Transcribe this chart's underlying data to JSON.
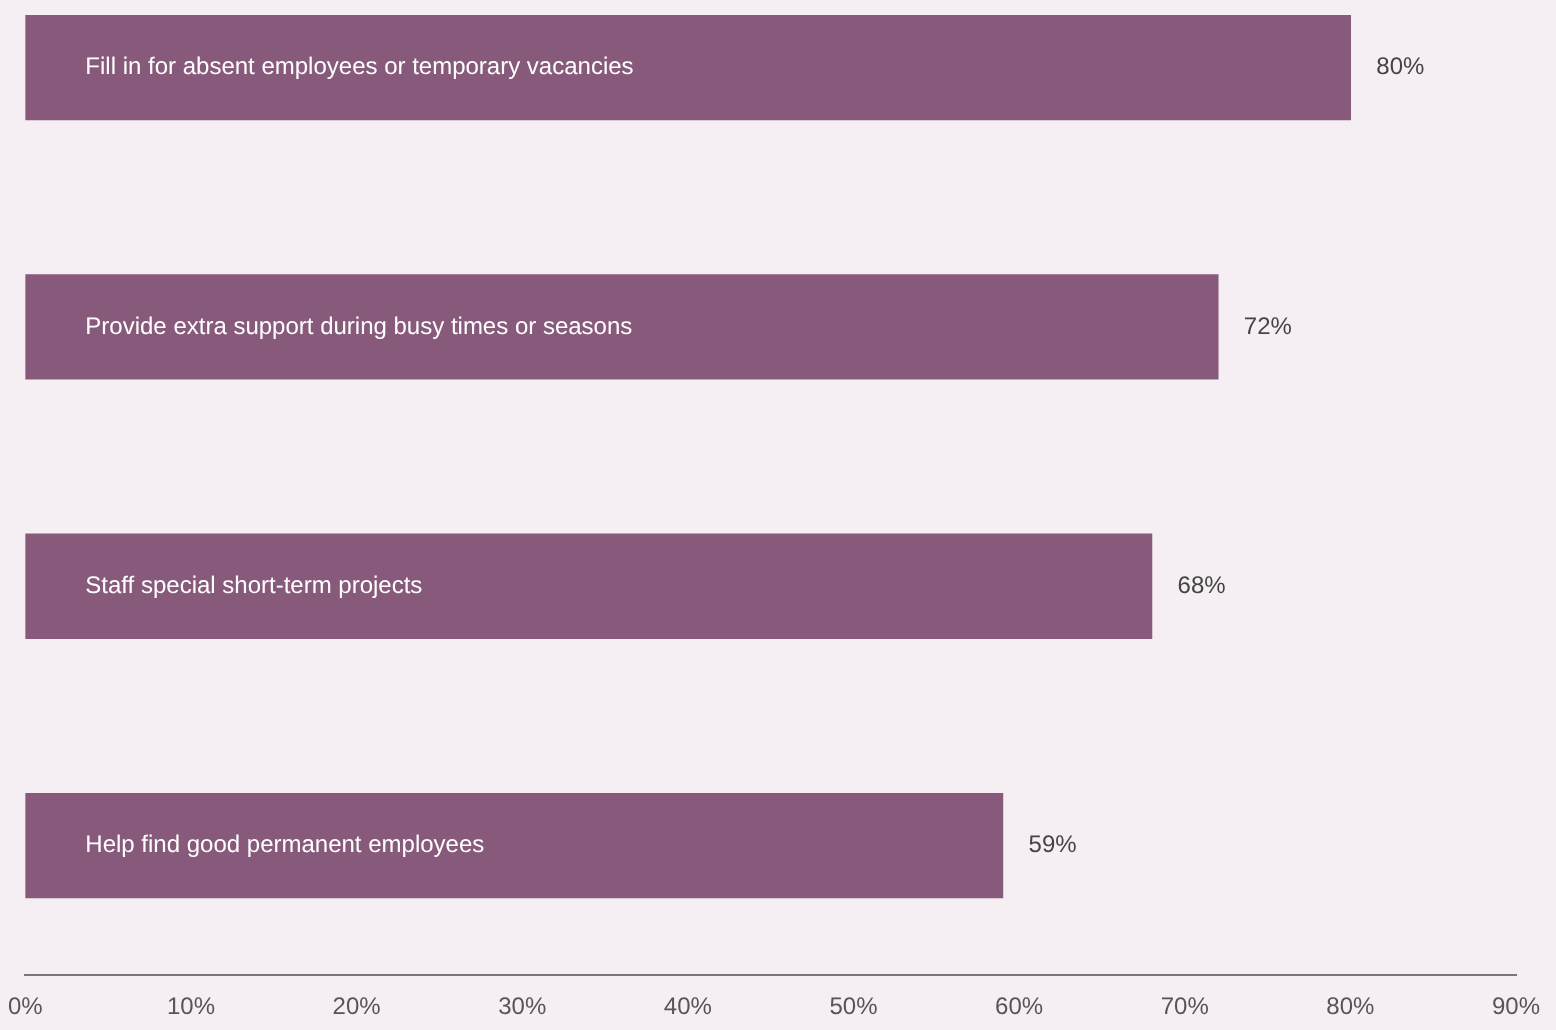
{
  "chart_data": {
    "type": "bar",
    "orientation": "horizontal",
    "categories": [
      "Fill in for absent employees or temporary vacancies",
      "Provide extra support during busy times or seasons",
      "Staff special short-term projects",
      "Help find good permanent employees"
    ],
    "values": [
      80,
      72,
      68,
      59
    ],
    "color": "#875a7b",
    "value_labels": [
      "80%",
      "72%",
      "68%",
      "59%"
    ],
    "xlim": [
      0,
      90
    ],
    "xticks": [
      {
        "value": 0,
        "label": "0%"
      },
      {
        "value": 10,
        "label": "10%"
      },
      {
        "value": 20,
        "label": "20%"
      },
      {
        "value": 30,
        "label": "30%"
      },
      {
        "value": 40,
        "label": "40%"
      },
      {
        "value": 50,
        "label": "50%"
      },
      {
        "value": 60,
        "label": "60%"
      },
      {
        "value": 70,
        "label": "70%"
      },
      {
        "value": 80,
        "label": "80%"
      },
      {
        "value": 90,
        "label": "90%"
      }
    ],
    "grid": false,
    "legend": false
  }
}
